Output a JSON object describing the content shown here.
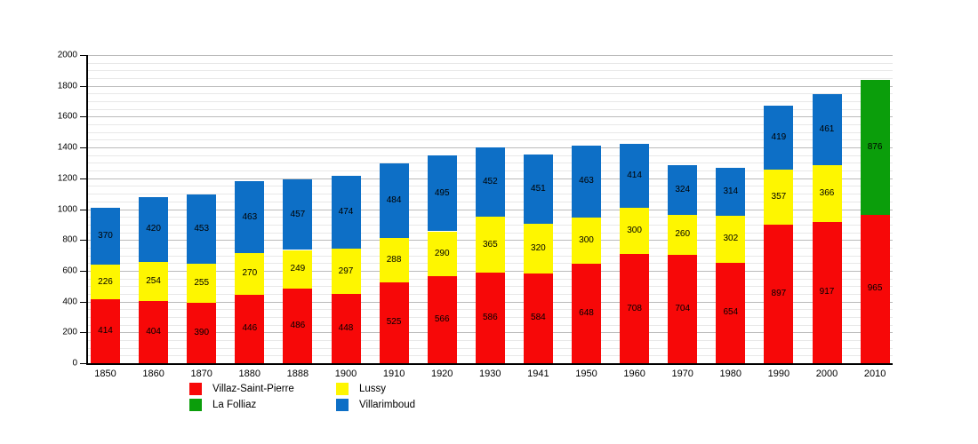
{
  "chart_data": {
    "type": "bar",
    "stacked": true,
    "title": "",
    "xlabel": "",
    "ylabel": "",
    "categories": [
      "1850",
      "1860",
      "1870",
      "1880",
      "1888",
      "1900",
      "1910",
      "1920",
      "1930",
      "1941",
      "1950",
      "1960",
      "1970",
      "1980",
      "1990",
      "2000",
      "2010"
    ],
    "series": [
      {
        "name": "Villaz-Saint-Pierre",
        "color": "#f70808",
        "values": [
          414,
          404,
          390,
          446,
          486,
          448,
          525,
          566,
          586,
          584,
          648,
          708,
          704,
          654,
          897,
          917,
          965
        ]
      },
      {
        "name": "Lussy",
        "color": "#fef600",
        "values": [
          226,
          254,
          255,
          270,
          249,
          297,
          288,
          290,
          365,
          320,
          300,
          300,
          260,
          302,
          357,
          366,
          null
        ]
      },
      {
        "name": "Villarimboud",
        "color": "#0d6fc6",
        "values": [
          370,
          420,
          453,
          463,
          457,
          474,
          484,
          495,
          452,
          451,
          463,
          414,
          324,
          314,
          419,
          461,
          null
        ]
      },
      {
        "name": "La Folliaz",
        "color": "#0b9e0b",
        "values": [
          null,
          null,
          null,
          null,
          null,
          null,
          null,
          null,
          null,
          null,
          null,
          null,
          null,
          null,
          null,
          null,
          876
        ]
      }
    ],
    "ylim": [
      0,
      2000
    ],
    "y_ticks": [
      0,
      200,
      400,
      600,
      800,
      1000,
      1200,
      1400,
      1600,
      1800,
      2000
    ],
    "y_major_step": 200,
    "y_minor_step": 50,
    "grid": true,
    "segment_value_labels": true,
    "legend_position": "bottom-left"
  },
  "legend": {
    "items": [
      {
        "label": "Villaz-Saint-Pierre",
        "color": "#f70808"
      },
      {
        "label": "Lussy",
        "color": "#fef600"
      },
      {
        "label": "La Folliaz",
        "color": "#0b9e0b"
      },
      {
        "label": "Villarimboud",
        "color": "#0d6fc6"
      }
    ]
  },
  "colors": {
    "background": "#ffffff",
    "axis": "#000000",
    "grid_major": "#bbbbbb",
    "grid_minor": "#e8e8e8",
    "text": "#000000"
  }
}
